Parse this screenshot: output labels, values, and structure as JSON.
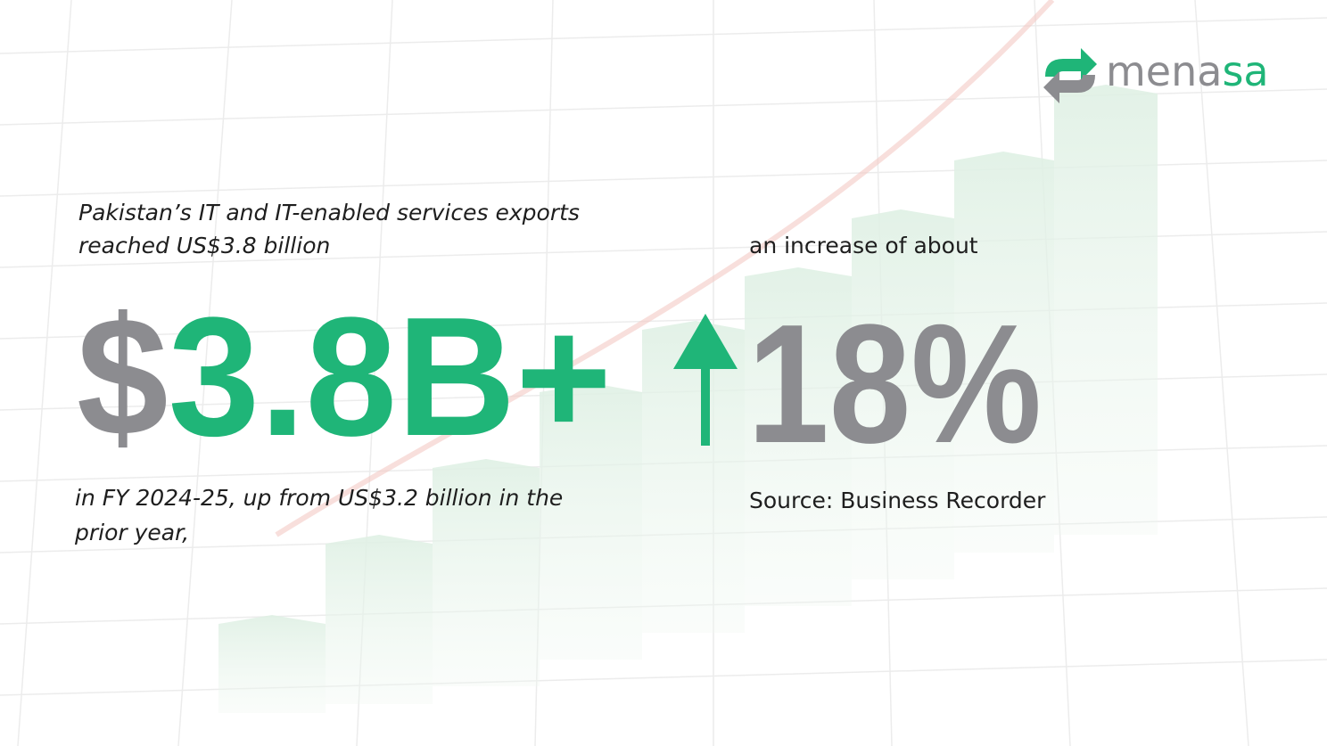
{
  "logo": {
    "text_dark": "mena",
    "text_accent": "sa"
  },
  "intro": [
    "Pakistan’s IT and IT-enabled services exports",
    "reached US$3.8 billion"
  ],
  "headline": {
    "currency": "$",
    "amount": "3.8B+"
  },
  "detail": [
    "in FY 2024-25, up from US$3.2 billion in the",
    "prior year,"
  ],
  "increase_label": "an increase of about",
  "increase_value": "18%",
  "source": "Source: Business Recorder"
}
